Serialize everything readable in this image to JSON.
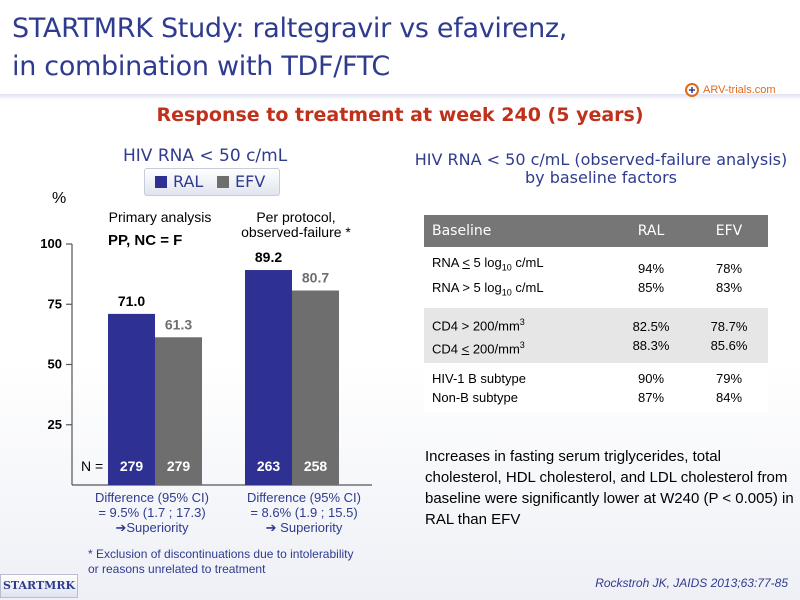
{
  "title_line1": "STARTMRK Study: raltegravir vs efavirenz,",
  "title_line2": "in combination with TDF/FTC",
  "logo_text": "ARV-trials.com",
  "subtitle": "Response to treatment at week 240 (5 years)",
  "chart_title": "HIV RNA < 50 c/mL",
  "legend": {
    "ral": "RAL",
    "efv": "EFV"
  },
  "colors": {
    "ral": "#2e3192",
    "efv": "#6e6e6e",
    "title": "#2f3b8f",
    "subtitle": "#c0311c"
  },
  "y_unit": "%",
  "sections": {
    "primary_label": "Primary analysis",
    "primary_sub": "PP, NC = F",
    "perprotocol_line1": "Per protocol,",
    "perprotocol_line2": "observed-failure *"
  },
  "n_label": "N =",
  "differences": {
    "primary": {
      "l1": "Difference (95% CI)",
      "l2": "= 9.5% (1.7 ; 17.3)",
      "l3": "➔Superiority"
    },
    "perprotocol": {
      "l1": "Difference (95% CI)",
      "l2": "= 8.6% (1.9 ; 15.5)",
      "l3": "➔ Superiority"
    }
  },
  "footnote_l1": "* Exclusion of discontinuations due to intolerability",
  "footnote_l2": "or reasons unrelated to treatment",
  "chart_data": {
    "type": "bar",
    "title": "HIV RNA < 50 c/mL",
    "ylabel": "%",
    "ylim": [
      0,
      100
    ],
    "yticks": [
      25,
      50,
      75,
      100
    ],
    "categories": [
      "Primary analysis PP, NC = F",
      "Per protocol, observed-failure *"
    ],
    "series": [
      {
        "name": "RAL",
        "values": [
          71.0,
          89.2
        ],
        "n": [
          279,
          263
        ]
      },
      {
        "name": "EFV",
        "values": [
          61.3,
          80.7
        ],
        "n": [
          279,
          258
        ]
      }
    ],
    "legend": "top"
  },
  "table_title": "HIV RNA < 50 c/mL (observed-failure analysis) by baseline factors",
  "table": {
    "headers": [
      "Baseline",
      "RAL",
      "EFV"
    ],
    "groups": [
      {
        "rows": [
          {
            "label": "RNA < 5 log10 c/mL",
            "ral": "94%",
            "efv": "78%"
          },
          {
            "label": "RNA > 5 log10 c/mL",
            "ral": "85%",
            "efv": "83%"
          }
        ]
      },
      {
        "rows": [
          {
            "label": "CD4 > 200/mm3",
            "ral": "82.5%",
            "efv": "78.7%"
          },
          {
            "label": "CD4 < 200/mm3",
            "ral": "88.3%",
            "efv": "85.6%"
          }
        ]
      },
      {
        "rows": [
          {
            "label": "HIV-1 B subtype",
            "ral": "90%",
            "efv": "79%"
          },
          {
            "label": "Non-B subtype",
            "ral": "87%",
            "efv": "84%"
          }
        ]
      }
    ]
  },
  "increases_text": "Increases in fasting serum triglycerides, total cholesterol, HDL cholesterol, and LDL cholesterol from baseline were significantly lower at W240 (P < 0.005) in RAL than EFV",
  "citation": "Rockstroh JK, JAIDS 2013;63:77-85",
  "badge": "STARTMRK"
}
